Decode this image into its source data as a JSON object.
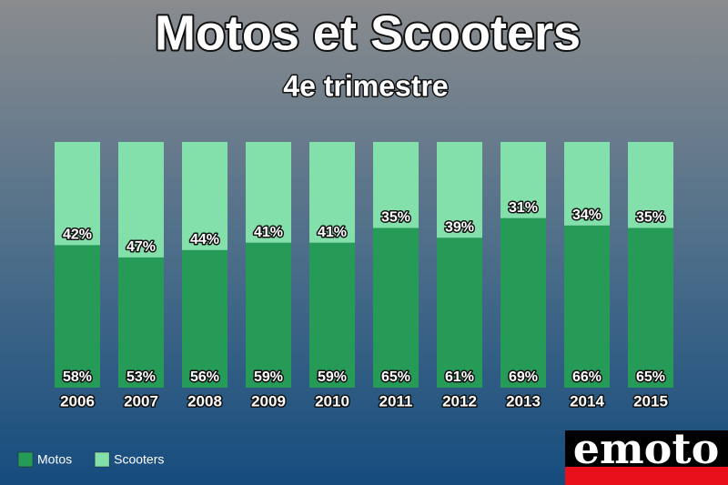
{
  "chart_data": {
    "type": "stacked-bar",
    "title": "Motos et Scooters",
    "subtitle": "4e trimestre",
    "categories": [
      "2006",
      "2007",
      "2008",
      "2009",
      "2010",
      "2011",
      "2012",
      "2013",
      "2014",
      "2015"
    ],
    "series": [
      {
        "name": "Motos",
        "color": "#259b57",
        "values": [
          58,
          53,
          56,
          59,
          59,
          65,
          61,
          69,
          66,
          65
        ],
        "value_labels": [
          "58%",
          "53%",
          "56%",
          "59%",
          "59%",
          "65%",
          "61%",
          "69%",
          "66%",
          "65%"
        ]
      },
      {
        "name": "Scooters",
        "color": "#84e0ab",
        "values": [
          42,
          47,
          44,
          41,
          41,
          35,
          39,
          31,
          34,
          35
        ],
        "value_labels": [
          "42%",
          "47%",
          "44%",
          "41%",
          "41%",
          "35%",
          "39%",
          "31%",
          "34%",
          "35%"
        ]
      }
    ],
    "legend": "bottom-left"
  },
  "logo": {
    "text": "emoto"
  }
}
